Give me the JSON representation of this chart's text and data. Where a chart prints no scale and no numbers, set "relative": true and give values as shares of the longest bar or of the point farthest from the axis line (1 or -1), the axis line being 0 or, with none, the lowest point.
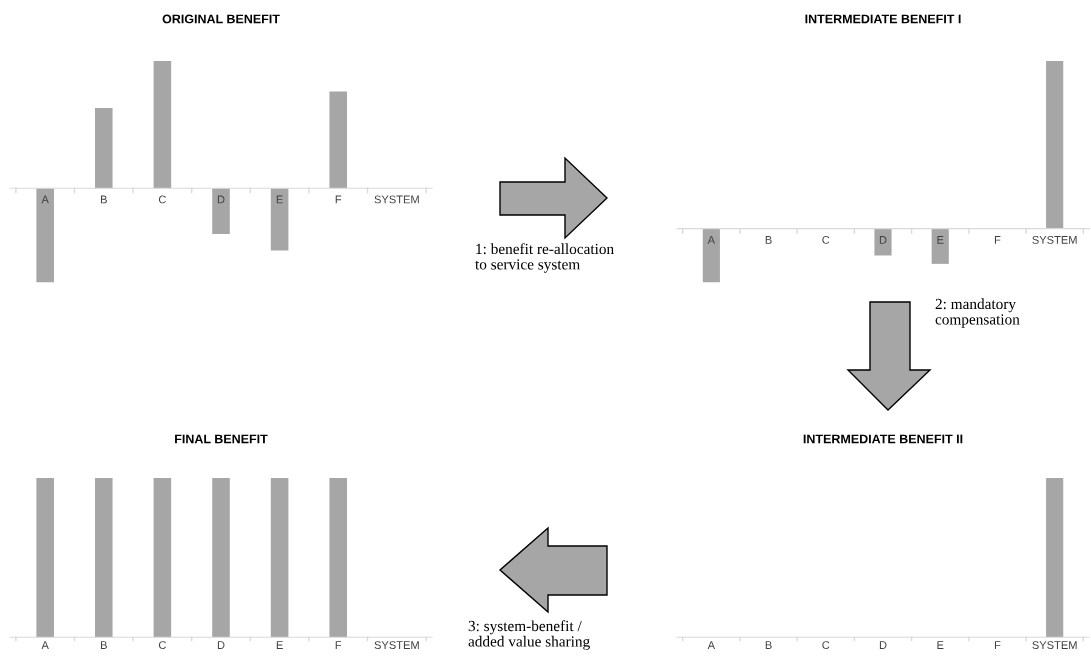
{
  "chart_data": [
    {
      "type": "bar",
      "title": "ORIGINAL BENEFIT",
      "relative": true,
      "categories": [
        "A",
        "B",
        "C",
        "D",
        "E",
        "F",
        "SYSTEM"
      ],
      "values": [
        -0.74,
        0.63,
        1,
        -0.36,
        -0.49,
        0.76,
        0
      ],
      "color": "#a6a6a6",
      "annotations": [
        "1: benefit re-allocation\nto service system"
      ]
    },
    {
      "type": "bar",
      "title": "INTERMEDIATE BENEFIT I",
      "relative": true,
      "categories": [
        "A",
        "B",
        "C",
        "D",
        "E",
        "F",
        "SYSTEM"
      ],
      "values": [
        -0.32,
        0,
        0,
        -0.16,
        -0.21,
        0,
        1
      ],
      "color": "#a6a6a6",
      "annotations": [
        "2: mandatory\ncompensation"
      ]
    },
    {
      "type": "bar",
      "title": "FINAL BENEFIT",
      "relative": true,
      "categories": [
        "A",
        "B",
        "C",
        "D",
        "E",
        "F",
        "SYSTEM"
      ],
      "values": [
        1,
        1,
        1,
        1,
        1,
        1,
        0
      ],
      "color": "#a6a6a6",
      "annotations": [
        "3: system-benefit /\nadded value sharing"
      ]
    },
    {
      "type": "bar",
      "title": "INTERMEDIATE BENEFIT II",
      "relative": true,
      "categories": [
        "A",
        "B",
        "C",
        "D",
        "E",
        "F",
        "SYSTEM"
      ],
      "values": [
        0,
        0,
        0,
        0,
        0,
        0,
        1
      ],
      "color": "#a6a6a6"
    }
  ]
}
